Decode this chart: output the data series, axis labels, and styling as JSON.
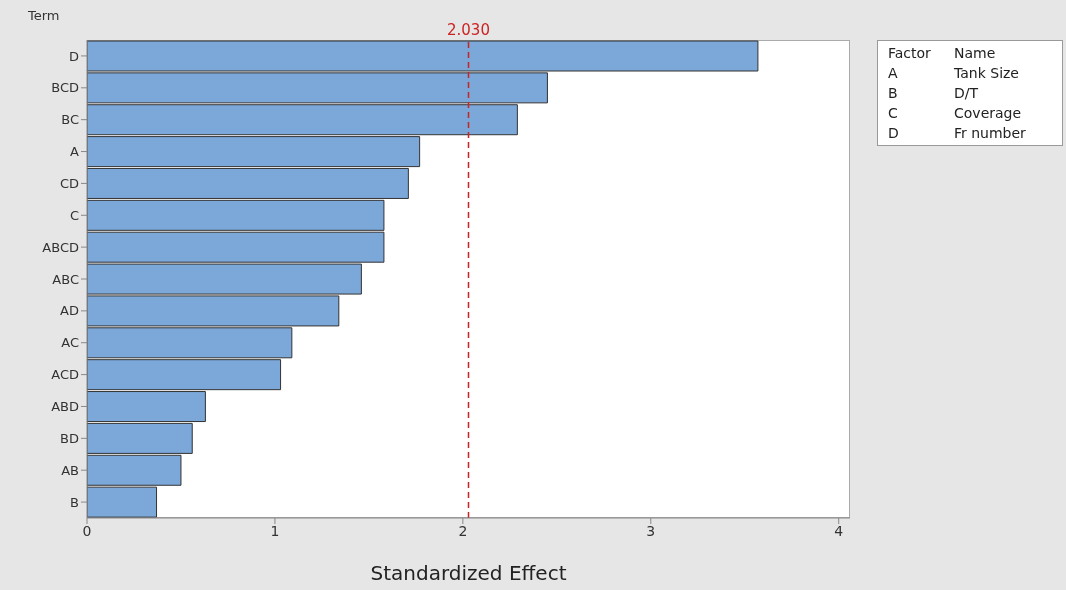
{
  "chart_data": {
    "type": "bar",
    "orientation": "horizontal",
    "xlabel": "Standardized Effect",
    "ylabel": "Term",
    "categories": [
      "D",
      "BCD",
      "BC",
      "A",
      "CD",
      "C",
      "ABCD",
      "ABC",
      "AD",
      "AC",
      "ACD",
      "ABD",
      "BD",
      "AB",
      "B"
    ],
    "values": [
      3.57,
      2.45,
      2.29,
      1.77,
      1.71,
      1.58,
      1.58,
      1.46,
      1.34,
      1.09,
      1.03,
      0.63,
      0.56,
      0.5,
      0.37
    ],
    "color": "#7ba7d9",
    "xlim": [
      0,
      4.06
    ],
    "xticks": [
      0,
      1,
      2,
      3,
      4
    ],
    "ref_lines": [
      {
        "axis": "x",
        "value": 2.03,
        "label": "2.030",
        "color": "#cc2222",
        "line_style": "dashed"
      }
    ],
    "annotations": [
      "Factor",
      "Name",
      "A",
      "Tank Size",
      "B",
      "D/T",
      "C",
      "Coverage",
      "D",
      "Fr number"
    ],
    "grid": false
  }
}
